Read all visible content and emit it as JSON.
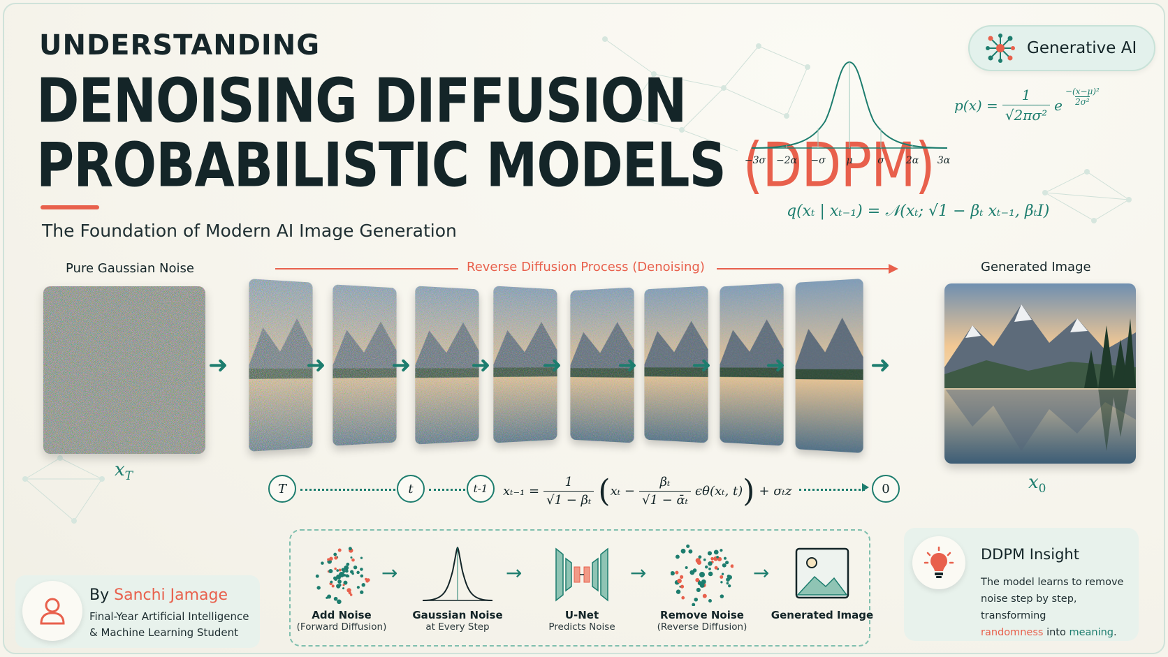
{
  "header": {
    "kicker": "UNDERSTANDING",
    "title_line1": "DENOISING DIFFUSION",
    "title_line2": "PROBABILISTIC MODELS",
    "title_accent": "(DDPM)",
    "subtitle": "The Foundation of Modern AI Image Generation"
  },
  "badge": {
    "label": "Generative AI",
    "icon": "neural-network-icon"
  },
  "gaussian_plot": {
    "ticks": [
      "−3σ",
      "−2α",
      "−σ",
      "μ",
      "σ",
      "2α",
      "3α"
    ],
    "pdf": {
      "lhs": "p(x) =",
      "num": "1",
      "den": "√2πσ²",
      "base": "e",
      "exp_sign": "−",
      "exp_num": "(x−μ)²",
      "exp_den": "2σ²"
    }
  },
  "forward_eq": "q(xₜ | xₜ₋₁) = 𝒩(xₜ;  √1 − βₜ xₜ₋₁,  βₜI)",
  "process": {
    "noise_label": "Pure Gaussian Noise",
    "reverse_label": "Reverse Diffusion Process (Denoising)",
    "generated_label": "Generated Image",
    "x_T": "xT",
    "x_0": "x0",
    "steps": 8
  },
  "timeline": {
    "nodes": [
      "T",
      "t",
      "t-1",
      "0"
    ],
    "eq": {
      "lhs": "xₜ₋₁ =",
      "frac1_num": "1",
      "frac1_den": "√1 − βₜ",
      "open": "(",
      "x_t": "xₜ −",
      "frac2_num": "βₜ",
      "frac2_den": "√1 − ᾱₜ",
      "eps": "ϵθ(xₜ, t)",
      "close": ")",
      "tail": "+ σₜz"
    }
  },
  "pipeline": [
    {
      "label": "Add Noise",
      "sub": "(Forward Diffusion)",
      "icon": "scatter-noise-icon"
    },
    {
      "label": "Gaussian Noise",
      "sub": "at Every Step",
      "icon": "bell-curve-icon"
    },
    {
      "label": "U-Net",
      "sub": "Predicts Noise",
      "icon": "unet-icon"
    },
    {
      "label": "Remove Noise",
      "sub": "(Reverse Diffusion)",
      "icon": "denoise-burst-icon"
    },
    {
      "label": "Generated Image",
      "sub": "",
      "icon": "image-icon"
    }
  ],
  "author": {
    "by": "By",
    "name": "Sanchi Jamage",
    "role_line1": "Final-Year Artificial Intelligence",
    "role_line2": "& Machine Learning Student"
  },
  "insight": {
    "title": "DDPM Insight",
    "text_line1": "The model learns to remove",
    "text_line2": "noise step by step, transforming",
    "word_random": "randomness",
    "word_into": " into ",
    "word_meaning": "meaning",
    "period": "."
  },
  "colors": {
    "accent": "#e8604c",
    "teal": "#1d7d6e",
    "ink": "#142528",
    "bg": "#f6f4ec"
  }
}
